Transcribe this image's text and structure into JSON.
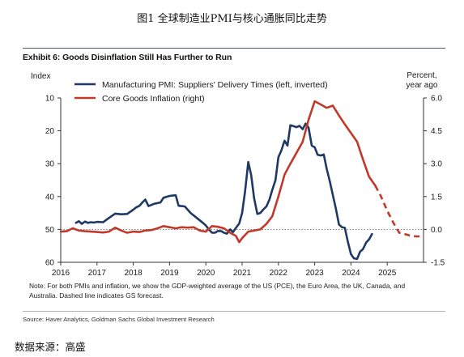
{
  "figure_title": "图1 全球制造业PMI与核心通胀同比走势",
  "exhibit_title": "Exhibit 6: Goods Disinflation Still Has Further to Run",
  "note": "Note: For both PMIs and inflation, we show the GDP-weighted average of the US (PCE), the Euro Area, the UK, Canada, and Australia. Dashed line indicates GS forecast.",
  "source": "Source: Haver Analytics, Goldman Sachs Global Investment Research",
  "data_source_cn": "数据来源：高盛",
  "chart_data": {
    "type": "line",
    "left_axis_title": "Index",
    "right_axis_title_line1": "Percent,",
    "right_axis_title_line2": "year ago",
    "x_ticks": [
      "2016",
      "2017",
      "2018",
      "2019",
      "2020",
      "2021",
      "2022",
      "2023",
      "2024",
      "2025"
    ],
    "xlim": [
      2016,
      2026
    ],
    "y_left_ticks": [
      "10",
      "20",
      "30",
      "40",
      "50",
      "60"
    ],
    "y_left_range": [
      10,
      60
    ],
    "y_left_inverted": true,
    "y_right_ticks": [
      "6.0",
      "4.5",
      "3.0",
      "1.5",
      "0.0",
      "-1.5"
    ],
    "y_right_range": [
      -1.5,
      6.0
    ],
    "zero_line_dotted": true,
    "legend_position": "top-left",
    "series": [
      {
        "name": "Manufacturing PMI: Suppliers' Delivery Times (left, inverted)",
        "axis": "left",
        "color": "#1f3864",
        "points": [
          [
            2016.42,
            48.0
          ],
          [
            2016.5,
            47.5
          ],
          [
            2016.58,
            48.3
          ],
          [
            2016.67,
            47.6
          ],
          [
            2016.75,
            48.0
          ],
          [
            2016.83,
            47.8
          ],
          [
            2016.92,
            47.9
          ],
          [
            2017.0,
            47.7
          ],
          [
            2017.17,
            47.8
          ],
          [
            2017.33,
            46.5
          ],
          [
            2017.5,
            45.2
          ],
          [
            2017.67,
            45.4
          ],
          [
            2017.83,
            45.3
          ],
          [
            2018.0,
            44.0
          ],
          [
            2018.08,
            43.3
          ],
          [
            2018.17,
            42.8
          ],
          [
            2018.25,
            41.8
          ],
          [
            2018.33,
            40.9
          ],
          [
            2018.42,
            42.9
          ],
          [
            2018.58,
            42.2
          ],
          [
            2018.75,
            41.8
          ],
          [
            2018.83,
            40.4
          ],
          [
            2019.0,
            39.8
          ],
          [
            2019.08,
            39.7
          ],
          [
            2019.17,
            39.6
          ],
          [
            2019.25,
            42.8
          ],
          [
            2019.42,
            43.0
          ],
          [
            2019.58,
            45.0
          ],
          [
            2019.75,
            46.5
          ],
          [
            2019.92,
            48.0
          ],
          [
            2020.0,
            48.8
          ],
          [
            2020.08,
            50.0
          ],
          [
            2020.17,
            51.0
          ],
          [
            2020.25,
            51.0
          ],
          [
            2020.33,
            50.5
          ],
          [
            2020.42,
            50.5
          ],
          [
            2020.5,
            51.0
          ],
          [
            2020.58,
            51.3
          ],
          [
            2020.67,
            50.0
          ],
          [
            2020.75,
            50.8
          ],
          [
            2020.83,
            49.5
          ],
          [
            2020.92,
            48.2
          ],
          [
            2021.0,
            45.0
          ],
          [
            2021.08,
            38.5
          ],
          [
            2021.17,
            29.5
          ],
          [
            2021.25,
            33.5
          ],
          [
            2021.33,
            40.5
          ],
          [
            2021.42,
            45.3
          ],
          [
            2021.5,
            45.0
          ],
          [
            2021.58,
            44.0
          ],
          [
            2021.67,
            43.0
          ],
          [
            2021.75,
            41.0
          ],
          [
            2021.83,
            38.0
          ],
          [
            2021.92,
            35.0
          ],
          [
            2022.0,
            28.0
          ],
          [
            2022.08,
            26.0
          ],
          [
            2022.17,
            23.0
          ],
          [
            2022.25,
            24.5
          ],
          [
            2022.33,
            18.3
          ],
          [
            2022.42,
            18.6
          ],
          [
            2022.5,
            18.9
          ],
          [
            2022.58,
            18.5
          ],
          [
            2022.67,
            19.5
          ],
          [
            2022.75,
            17.8
          ],
          [
            2022.83,
            19.0
          ],
          [
            2022.92,
            24.5
          ],
          [
            2023.0,
            25.0
          ],
          [
            2023.08,
            27.3
          ],
          [
            2023.17,
            27.5
          ],
          [
            2023.25,
            27.2
          ],
          [
            2023.33,
            31.5
          ],
          [
            2023.42,
            35.5
          ],
          [
            2023.5,
            39.5
          ],
          [
            2023.58,
            43.5
          ],
          [
            2023.67,
            48.5
          ],
          [
            2023.75,
            49.3
          ],
          [
            2023.83,
            49.5
          ],
          [
            2023.92,
            54.0
          ],
          [
            2024.0,
            57.5
          ],
          [
            2024.08,
            58.8
          ],
          [
            2024.17,
            59.0
          ],
          [
            2024.25,
            56.8
          ],
          [
            2024.33,
            56.0
          ],
          [
            2024.42,
            54.0
          ],
          [
            2024.5,
            53.0
          ],
          [
            2024.58,
            51.4
          ]
        ],
        "forecast": []
      },
      {
        "name": "Core Goods Inflation (right)",
        "axis": "right",
        "color": "#c0392b",
        "points": [
          [
            2016.0,
            -0.1
          ],
          [
            2016.17,
            -0.08
          ],
          [
            2016.33,
            0.05
          ],
          [
            2016.5,
            -0.05
          ],
          [
            2016.67,
            -0.08
          ],
          [
            2016.83,
            -0.1
          ],
          [
            2017.0,
            -0.12
          ],
          [
            2017.17,
            -0.14
          ],
          [
            2017.33,
            -0.1
          ],
          [
            2017.5,
            0.08
          ],
          [
            2017.67,
            -0.05
          ],
          [
            2017.83,
            -0.15
          ],
          [
            2018.0,
            -0.1
          ],
          [
            2018.17,
            -0.12
          ],
          [
            2018.33,
            -0.05
          ],
          [
            2018.5,
            -0.03
          ],
          [
            2018.67,
            0.05
          ],
          [
            2018.83,
            0.15
          ],
          [
            2019.0,
            0.1
          ],
          [
            2019.17,
            0.05
          ],
          [
            2019.33,
            0.1
          ],
          [
            2019.5,
            0.08
          ],
          [
            2019.67,
            0.1
          ],
          [
            2019.83,
            -0.05
          ],
          [
            2020.0,
            -0.1
          ],
          [
            2020.17,
            0.15
          ],
          [
            2020.33,
            0.12
          ],
          [
            2020.5,
            0.05
          ],
          [
            2020.67,
            -0.15
          ],
          [
            2020.83,
            -0.3
          ],
          [
            2020.92,
            -0.58
          ],
          [
            2021.0,
            -0.4
          ],
          [
            2021.17,
            -0.1
          ],
          [
            2021.33,
            -0.05
          ],
          [
            2021.5,
            0.0
          ],
          [
            2021.67,
            0.25
          ],
          [
            2021.83,
            0.6
          ],
          [
            2022.0,
            1.5
          ],
          [
            2022.17,
            2.5
          ],
          [
            2022.33,
            3.0
          ],
          [
            2022.5,
            3.5
          ],
          [
            2022.67,
            4.0
          ],
          [
            2022.83,
            5.0
          ],
          [
            2023.0,
            5.85
          ],
          [
            2023.17,
            5.7
          ],
          [
            2023.33,
            5.55
          ],
          [
            2023.5,
            5.65
          ],
          [
            2023.67,
            5.2
          ],
          [
            2023.83,
            4.8
          ],
          [
            2024.0,
            4.4
          ],
          [
            2024.17,
            4.0
          ],
          [
            2024.33,
            3.2
          ],
          [
            2024.5,
            2.4
          ],
          [
            2024.67,
            2.0
          ]
        ],
        "forecast": [
          [
            2024.67,
            2.0
          ],
          [
            2024.83,
            1.5
          ],
          [
            2025.0,
            0.85
          ],
          [
            2025.17,
            0.3
          ],
          [
            2025.33,
            -0.15
          ],
          [
            2025.5,
            -0.22
          ],
          [
            2025.67,
            -0.3
          ],
          [
            2025.83,
            -0.32
          ],
          [
            2026.0,
            -0.3
          ]
        ]
      }
    ]
  }
}
